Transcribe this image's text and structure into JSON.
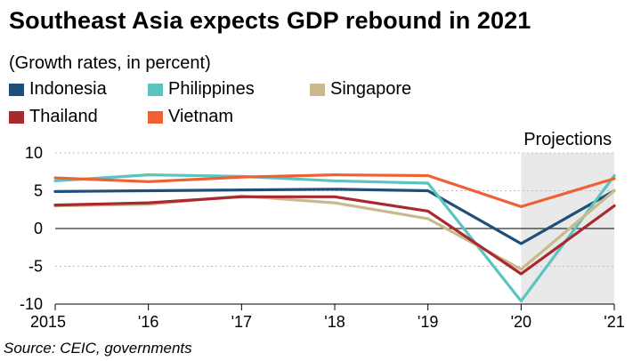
{
  "chart_data": {
    "type": "line",
    "title": "Southeast Asia expects GDP rebound in 2021",
    "subtitle": "(Growth rates, in percent)",
    "source": "Source: CEIC, governments",
    "projection_label": "Projections",
    "categories": [
      "2015",
      "'16",
      "'17",
      "'18",
      "'19",
      "'20",
      "'21"
    ],
    "projection_range": [
      "'20",
      "'21"
    ],
    "ylim": [
      -10,
      10
    ],
    "yticks": [
      10,
      5,
      0,
      -5,
      -10
    ],
    "ytick_labels": [
      "10",
      "5",
      "0",
      "-5",
      "-10"
    ],
    "grid": true,
    "legend_position": "top-left",
    "series": [
      {
        "name": "Indonesia",
        "color": "#1f4e79",
        "values": [
          4.9,
          5.0,
          5.1,
          5.2,
          5.0,
          -2.0,
          5.0
        ]
      },
      {
        "name": "Philippines",
        "color": "#5bc4bf",
        "values": [
          6.3,
          7.1,
          6.9,
          6.3,
          6.0,
          -9.6,
          7.0
        ]
      },
      {
        "name": "Singapore",
        "color": "#c9b98d",
        "values": [
          3.0,
          3.2,
          4.3,
          3.4,
          1.3,
          -5.4,
          5.0
        ]
      },
      {
        "name": "Thailand",
        "color": "#a8292e",
        "values": [
          3.1,
          3.4,
          4.2,
          4.2,
          2.3,
          -6.0,
          3.0
        ]
      },
      {
        "name": "Vietnam",
        "color": "#ef6033",
        "values": [
          6.7,
          6.2,
          6.8,
          7.1,
          7.0,
          2.9,
          6.6
        ]
      }
    ]
  }
}
